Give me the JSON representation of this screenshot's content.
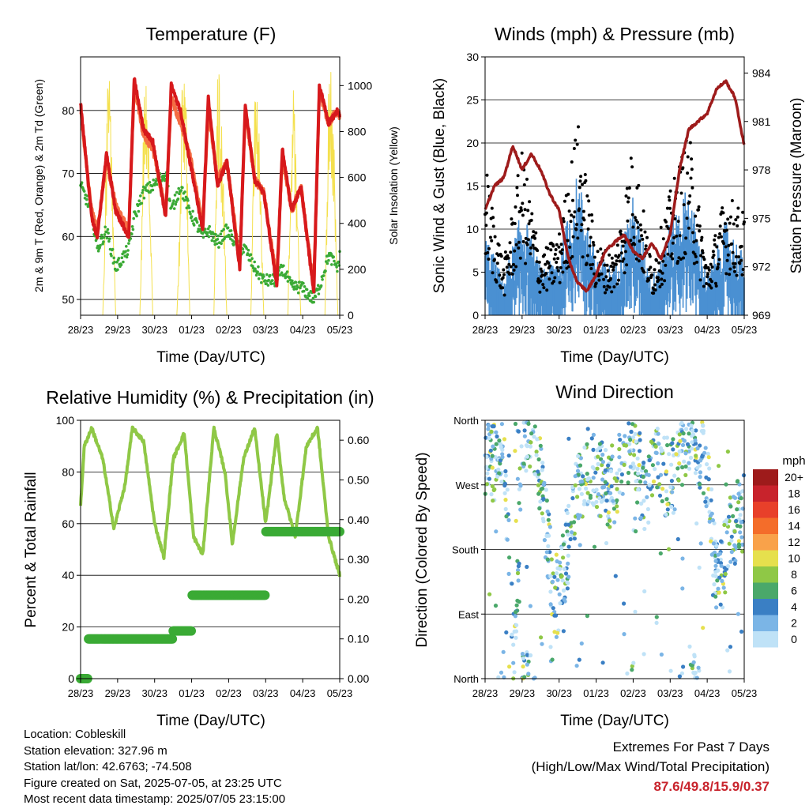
{
  "colors": {
    "temp2m": "#d7191c",
    "temp9m": "#f46d43",
    "dewpoint": "#3aaa35",
    "solar": "#f4e04d",
    "wind": "#4a90d2",
    "gust": "#000000",
    "pressure": "#9e1b1b",
    "rh": "#8fc846",
    "rain": "#3aaa35",
    "extremes": "#c8232c"
  },
  "x_ticks": [
    "28/23",
    "29/23",
    "30/23",
    "01/23",
    "02/23",
    "03/23",
    "04/23",
    "05/23"
  ],
  "x_label": "Time (Day/UTC)",
  "charts": {
    "temperature": {
      "title": "Temperature (F)",
      "ylabel_left": "2m & 9m T (Red, Orange) & 2m Td (Green)",
      "ylabel_right": "Solar Insolation (Yellow)",
      "ylim_left": [
        47.5,
        88.5
      ],
      "ylim_right": [
        0,
        1125
      ],
      "left_ticks": [
        "50",
        "60",
        "70",
        "80"
      ],
      "right_ticks": [
        "0",
        "200",
        "400",
        "600",
        "800",
        "1000"
      ]
    },
    "winds": {
      "title": "Winds (mph) & Pressure (mb)",
      "ylabel_left": "Sonic Wind & Gust (Blue, Black)",
      "ylabel_right": "Station Pressure (Maroon)",
      "ylim_left": [
        0,
        30
      ],
      "ylim_right": [
        969,
        985
      ],
      "left_ticks": [
        "0",
        "5",
        "10",
        "15",
        "20",
        "25",
        "30"
      ],
      "right_ticks": [
        "969",
        "972",
        "975",
        "978",
        "981",
        "984"
      ]
    },
    "humidity": {
      "title": "Relative Humidity (%) & Precipitation (in)",
      "ylabel_left": "Percent & Total Rainfall",
      "ylim_left": [
        0,
        100
      ],
      "ylim_right": [
        0,
        0.65
      ],
      "left_ticks": [
        "0",
        "20",
        "40",
        "60",
        "80",
        "100"
      ],
      "right_ticks": [
        "0.00",
        "0.10",
        "0.20",
        "0.30",
        "0.40",
        "0.50",
        "0.60"
      ]
    },
    "direction": {
      "title": "Wind Direction",
      "ylabel_left": "Direction (Colored By Speed)",
      "dir_ticks": [
        "North",
        "East",
        "South",
        "West",
        "North"
      ],
      "legend_title": "mph",
      "legend_labels": [
        "20+",
        "18",
        "16",
        "14",
        "12",
        "10",
        "8",
        "6",
        "4",
        "2",
        "0"
      ],
      "legend_colors": [
        "#9e1b1b",
        "#c8232c",
        "#e8402a",
        "#f46d2a",
        "#f9a24a",
        "#e6e04d",
        "#8fc846",
        "#4aa86a",
        "#3a7fc4",
        "#7bb5e6",
        "#bfe2f7"
      ]
    }
  },
  "chart_data": [
    {
      "type": "line",
      "title": "Temperature (F)",
      "x_days": [
        "28/23",
        "29/23",
        "30/23",
        "01/23",
        "02/23",
        "03/23",
        "04/23",
        "05/23"
      ],
      "series": [
        {
          "name": "2m T",
          "x": [
            0,
            0.3,
            0.45,
            0.7,
            0.95,
            1.3,
            1.45,
            1.7,
            1.95,
            2.3,
            2.45,
            2.7,
            2.95,
            3.3,
            3.45,
            3.7,
            3.95,
            4.3,
            4.45,
            4.7,
            4.95,
            5.3,
            5.45,
            5.7,
            5.95,
            6.3,
            6.45,
            6.7,
            6.95,
            7.0
          ],
          "values": [
            81,
            63,
            60,
            73,
            64,
            60,
            85,
            77,
            75,
            63,
            84,
            80,
            72,
            61,
            82,
            68,
            72,
            55,
            81,
            69,
            67,
            52,
            74,
            64,
            68,
            51,
            84,
            78,
            80,
            79
          ]
        },
        {
          "name": "9m T",
          "x": [
            0,
            0.3,
            0.45,
            0.7,
            0.95,
            1.3,
            1.45,
            1.7,
            1.95,
            2.3,
            2.45,
            2.7,
            2.95,
            3.3,
            3.45,
            3.7,
            3.95,
            4.3,
            4.45,
            4.7,
            4.95,
            5.3,
            5.45,
            5.7,
            5.95,
            6.3,
            6.45,
            6.7,
            6.95,
            7.0
          ],
          "values": [
            80,
            64,
            61,
            72,
            65,
            61,
            84,
            76,
            74,
            64,
            82,
            78,
            73,
            62,
            80,
            69,
            72,
            56,
            80,
            69,
            67,
            53,
            73,
            64,
            68,
            52,
            83,
            78,
            80,
            79
          ]
        },
        {
          "name": "2m Td",
          "x": [
            0,
            0.3,
            0.45,
            0.7,
            0.95,
            1.3,
            1.45,
            1.7,
            1.95,
            2.3,
            2.45,
            2.7,
            2.95,
            3.3,
            3.45,
            3.7,
            3.95,
            4.3,
            4.45,
            4.7,
            4.95,
            5.3,
            5.45,
            5.7,
            5.95,
            6.3,
            6.45,
            6.7,
            6.95,
            7.0
          ],
          "values": [
            68,
            64,
            58,
            61,
            55,
            58,
            63,
            67,
            68,
            70,
            64,
            68,
            64,
            60,
            61,
            59,
            61,
            58,
            58,
            55,
            53,
            53,
            55,
            52,
            52,
            50,
            52,
            57,
            55,
            57
          ]
        },
        {
          "name": "Solar Insolation",
          "axis": "right",
          "x": [
            0.6,
            0.7,
            0.75,
            0.85,
            0.95,
            1.6,
            1.7,
            1.75,
            1.85,
            1.95,
            2.6,
            2.7,
            2.75,
            2.85,
            2.95,
            3.6,
            3.7,
            3.75,
            3.85,
            3.95,
            4.6,
            4.7,
            4.75,
            4.85,
            4.95,
            5.6,
            5.7,
            5.75,
            5.85,
            5.95,
            6.6,
            6.7,
            6.75,
            6.85,
            6.95
          ],
          "values": [
            0,
            700,
            1100,
            650,
            0,
            0,
            800,
            1050,
            700,
            0,
            0,
            500,
            1000,
            900,
            0,
            0,
            950,
            1000,
            600,
            0,
            0,
            900,
            1000,
            600,
            0,
            0,
            850,
            950,
            500,
            0,
            0,
            950,
            1000,
            700,
            0
          ]
        }
      ],
      "ylabel": "2m & 9m T (Red, Orange) & 2m Td (Green)"
    },
    {
      "type": "line",
      "title": "Winds (mph) & Pressure (mb)",
      "series": [
        {
          "name": "Sonic Wind",
          "x": [
            0,
            0.5,
            1.0,
            1.5,
            2.0,
            2.5,
            3.0,
            3.5,
            4.0,
            4.5,
            5.0,
            5.5,
            6.0,
            6.5,
            7.0
          ],
          "values": [
            7,
            3,
            9,
            4,
            5,
            12,
            5,
            4,
            10,
            3,
            8,
            11,
            3,
            8,
            5
          ]
        },
        {
          "name": "Gust",
          "x": [
            0,
            0.5,
            1.0,
            1.5,
            2.0,
            2.5,
            3.0,
            3.5,
            4.0,
            4.5,
            5.0,
            5.5,
            6.0,
            6.5,
            7.0
          ],
          "values": [
            15,
            5,
            16,
            6,
            8,
            19,
            7,
            6,
            17,
            5,
            12,
            18,
            5,
            12,
            10
          ]
        },
        {
          "name": "Station Pressure",
          "axis": "right",
          "x": [
            0,
            0.25,
            0.5,
            0.75,
            1.0,
            1.25,
            1.5,
            1.75,
            2.0,
            2.25,
            2.5,
            2.75,
            3.0,
            3.25,
            3.5,
            3.75,
            4.0,
            4.25,
            4.5,
            4.75,
            5.0,
            5.25,
            5.5,
            5.75,
            6.0,
            6.25,
            6.5,
            6.75,
            7.0
          ],
          "values": [
            975.5,
            977,
            977.5,
            979.5,
            978,
            979,
            978,
            976.5,
            975.5,
            972.5,
            971,
            970.5,
            971.5,
            973,
            973.5,
            974,
            973,
            972.5,
            973.5,
            972.5,
            974,
            978,
            980.5,
            981,
            981.5,
            983,
            983.5,
            982.5,
            979.5
          ]
        }
      ],
      "ylim": [
        0,
        30
      ],
      "ylabel": "Sonic Wind & Gust (Blue, Black)"
    },
    {
      "type": "line",
      "title": "Relative Humidity (%) & Precipitation (in)",
      "series": [
        {
          "name": "Relative Humidity",
          "x": [
            0,
            0.1,
            0.3,
            0.6,
            0.9,
            1.2,
            1.4,
            1.7,
            2.0,
            2.25,
            2.5,
            2.8,
            3.05,
            3.3,
            3.6,
            3.9,
            4.1,
            4.4,
            4.7,
            5.0,
            5.3,
            5.5,
            5.8,
            6.1,
            6.4,
            6.7,
            7.0
          ],
          "values": [
            67,
            90,
            97,
            85,
            58,
            75,
            97,
            92,
            60,
            47,
            85,
            95,
            55,
            48,
            97,
            80,
            52,
            85,
            97,
            60,
            95,
            70,
            55,
            90,
            97,
            55,
            40
          ]
        },
        {
          "name": "Total Rainfall",
          "axis": "right",
          "x": [
            0,
            0.1,
            0.2,
            0.5,
            1.0,
            1.5,
            2.0,
            2.5,
            2.9,
            3.0,
            3.5,
            4.0,
            4.5,
            4.9,
            5.0,
            5.5,
            6.0,
            6.5,
            7.0
          ],
          "values": [
            0.0,
            0.0,
            0.1,
            0.1,
            0.1,
            0.1,
            0.1,
            0.12,
            0.12,
            0.21,
            0.21,
            0.21,
            0.21,
            0.21,
            0.37,
            0.37,
            0.37,
            0.37,
            0.37
          ]
        }
      ],
      "ylim": [
        0,
        100
      ],
      "ylabel": "Percent & Total Rainfall"
    },
    {
      "type": "scatter",
      "title": "Wind Direction",
      "y_categories": [
        "North",
        "East",
        "South",
        "West",
        "North"
      ],
      "legend_title": "mph",
      "legend_labels": [
        "20+",
        "18",
        "16",
        "14",
        "12",
        "10",
        "8",
        "6",
        "4",
        "2",
        "0"
      ],
      "series": [
        {
          "name": "Wind Direction",
          "x": [
            0.2,
            0.5,
            0.8,
            1.0,
            1.3,
            1.5,
            1.9,
            2.2,
            2.5,
            2.8,
            3.1,
            3.4,
            3.7,
            4.0,
            4.3,
            4.6,
            5.0,
            5.3,
            5.6,
            6.0,
            6.3,
            6.6,
            6.9
          ],
          "values": [
            300,
            320,
            15,
            340,
            350,
            280,
            100,
            170,
            260,
            300,
            280,
            260,
            300,
            340,
            250,
            300,
            270,
            320,
            350,
            280,
            120,
            200,
            230
          ]
        }
      ],
      "ylabel": "Direction (Colored By Speed)"
    }
  ],
  "footer": {
    "location": "Location: Cobleskill",
    "elevation": "Station elevation: 327.96 m",
    "latlon": "Station lat/lon: 42.6763; -74.508",
    "created": "Figure created on Sat, 2025-07-05, at 23:25 UTC",
    "recent": "Most recent data timestamp: 2025/07/05 23:15:00",
    "extremes_title": "Extremes For Past 7 Days",
    "extremes_sub": "(High/Low/Max Wind/Total Precipitation)",
    "extremes_values": "87.6/49.8/15.9/0.37"
  }
}
